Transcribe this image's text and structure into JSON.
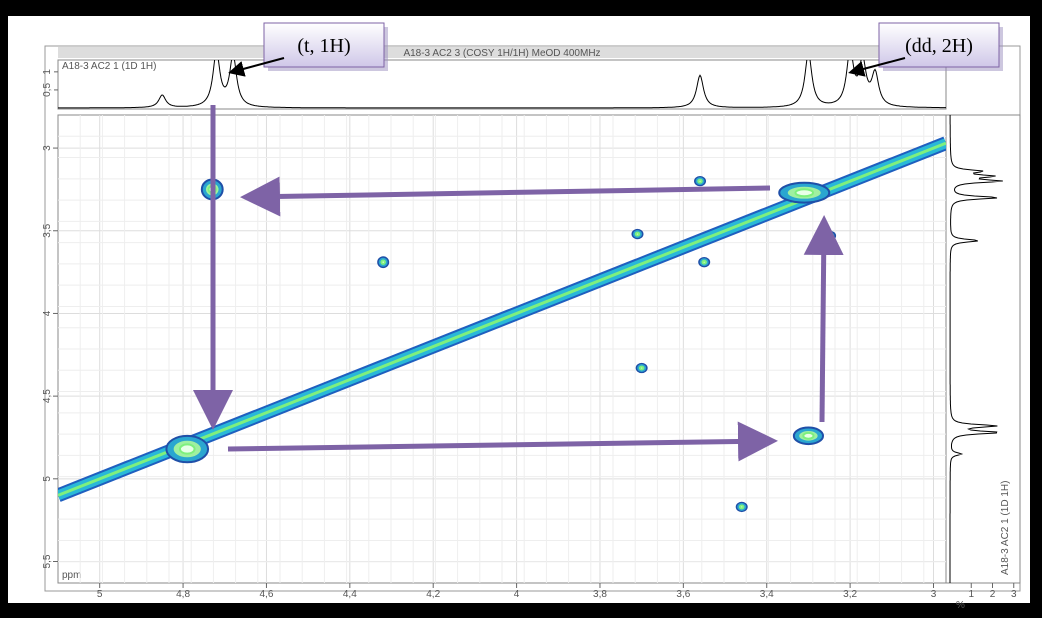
{
  "chart_data": {
    "type": "cosy",
    "title": "A18-3 AC2 3 (COSY 1H/1H) MeOD 400MHz",
    "top_label": "A18-3 AC2 1 (1D 1H)",
    "side_label": "A18-3 AC2 1 (1D 1H)",
    "xlabel": "ppm",
    "annotations": [
      "(t, 1H)",
      "(dd, 2H)"
    ],
    "xlim": [
      5.1,
      2.97
    ],
    "xticks": [
      5,
      {
        "value": 4.8,
        "label": "4,8"
      },
      {
        "value": 4.6,
        "label": "4,6"
      },
      {
        "value": 4.4,
        "label": "4,4"
      },
      {
        "value": 4.2,
        "label": "4,2"
      },
      4,
      {
        "value": 3.8,
        "label": "3,8"
      },
      {
        "value": 3.6,
        "label": "3,6"
      },
      {
        "value": 3.4,
        "label": "3,4"
      },
      {
        "value": 3.2,
        "label": "3,2"
      },
      3
    ],
    "ylim": [
      2.8,
      5.63
    ],
    "yticks": [
      3,
      {
        "value": 3.5,
        "label": "3,5"
      },
      4,
      {
        "value": 4.5,
        "label": "4,5"
      },
      5,
      {
        "value": 5.5,
        "label": "5,5"
      }
    ],
    "grid": true,
    "peaks": {
      "x": [
        4.73,
        3.3,
        4.79,
        3.31,
        3.56,
        3.71,
        4.32,
        3.55,
        3.7,
        3.46,
        3.25
      ],
      "y": [
        3.25,
        4.74,
        4.82,
        3.27,
        3.2,
        3.52,
        3.69,
        3.69,
        4.33,
        5.17,
        3.53
      ],
      "dx": [
        0.025,
        0.035,
        0.05,
        0.06,
        0.012,
        0.012,
        0.012,
        0.012,
        0.012,
        0.012,
        0.014
      ],
      "dy": [
        0.06,
        0.05,
        0.08,
        0.06,
        0.025,
        0.025,
        0.03,
        0.025,
        0.025,
        0.025,
        0.025
      ]
    },
    "projection": {
      "ppm": [
        4.85,
        4.72,
        4.68,
        3.56,
        3.3,
        3.2,
        3.17,
        3.14
      ],
      "height": [
        0.35,
        1.5,
        1.4,
        0.9,
        1.5,
        1.5,
        1.2,
        0.9
      ]
    },
    "top_ylim": [
      0,
      1.3
    ],
    "top_yticks": [
      {
        "value": 0.5,
        "label": "0,5"
      },
      1
    ],
    "side_label_unit": "%",
    "side_xlim": [
      0,
      3.2
    ],
    "side_xticks": [
      1,
      2,
      3
    ]
  }
}
